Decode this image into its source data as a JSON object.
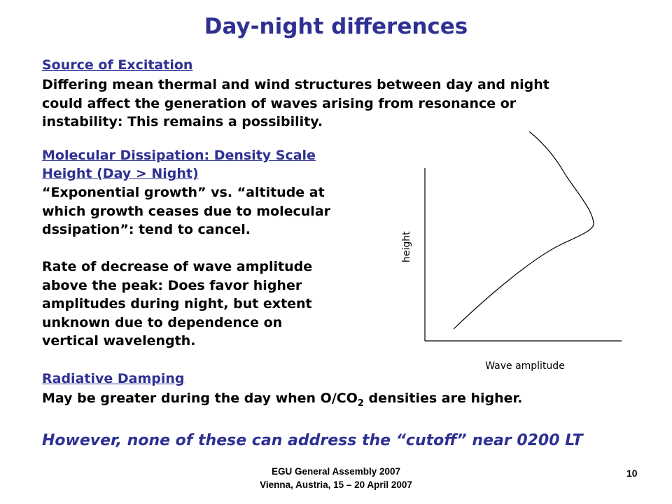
{
  "slide": {
    "title": "Day-night differences",
    "page_number": "10"
  },
  "sections": {
    "source": {
      "heading": "Source of Excitation",
      "lines": [
        "Differing mean thermal and wind structures between day and night",
        "could affect the generation of waves arising from resonance or",
        "instability: This remains a possibility."
      ]
    },
    "molecular": {
      "heading_lines": [
        "Molecular Dissipation: Density Scale",
        "Height (Day > Night)"
      ],
      "lines": [
        "“Exponential growth” vs. “altitude at",
        "which growth ceases due to molecular",
        "dssipation”: tend to cancel."
      ]
    },
    "rate": {
      "lines": [
        "Rate of decrease of wave amplitude",
        "above the peak: Does favor higher",
        "amplitudes during night, but extent",
        "unknown due to dependence on",
        "vertical wavelength."
      ]
    },
    "radiative": {
      "heading": "Radiative Damping",
      "text_before": "May be greater during the day when O/CO",
      "subscript": "2",
      "text_after": " densities are higher."
    }
  },
  "note": "However, none of these can address the “cutoff” near 0200 LT",
  "diagram": {
    "y_axis_label": "height",
    "x_axis_label": "Wave amplitude",
    "line_color": "#000000"
  },
  "footer": {
    "line1": "EGU General Assembly 2007",
    "line2": "Vienna, Austria, 15 – 20 April 2007"
  }
}
